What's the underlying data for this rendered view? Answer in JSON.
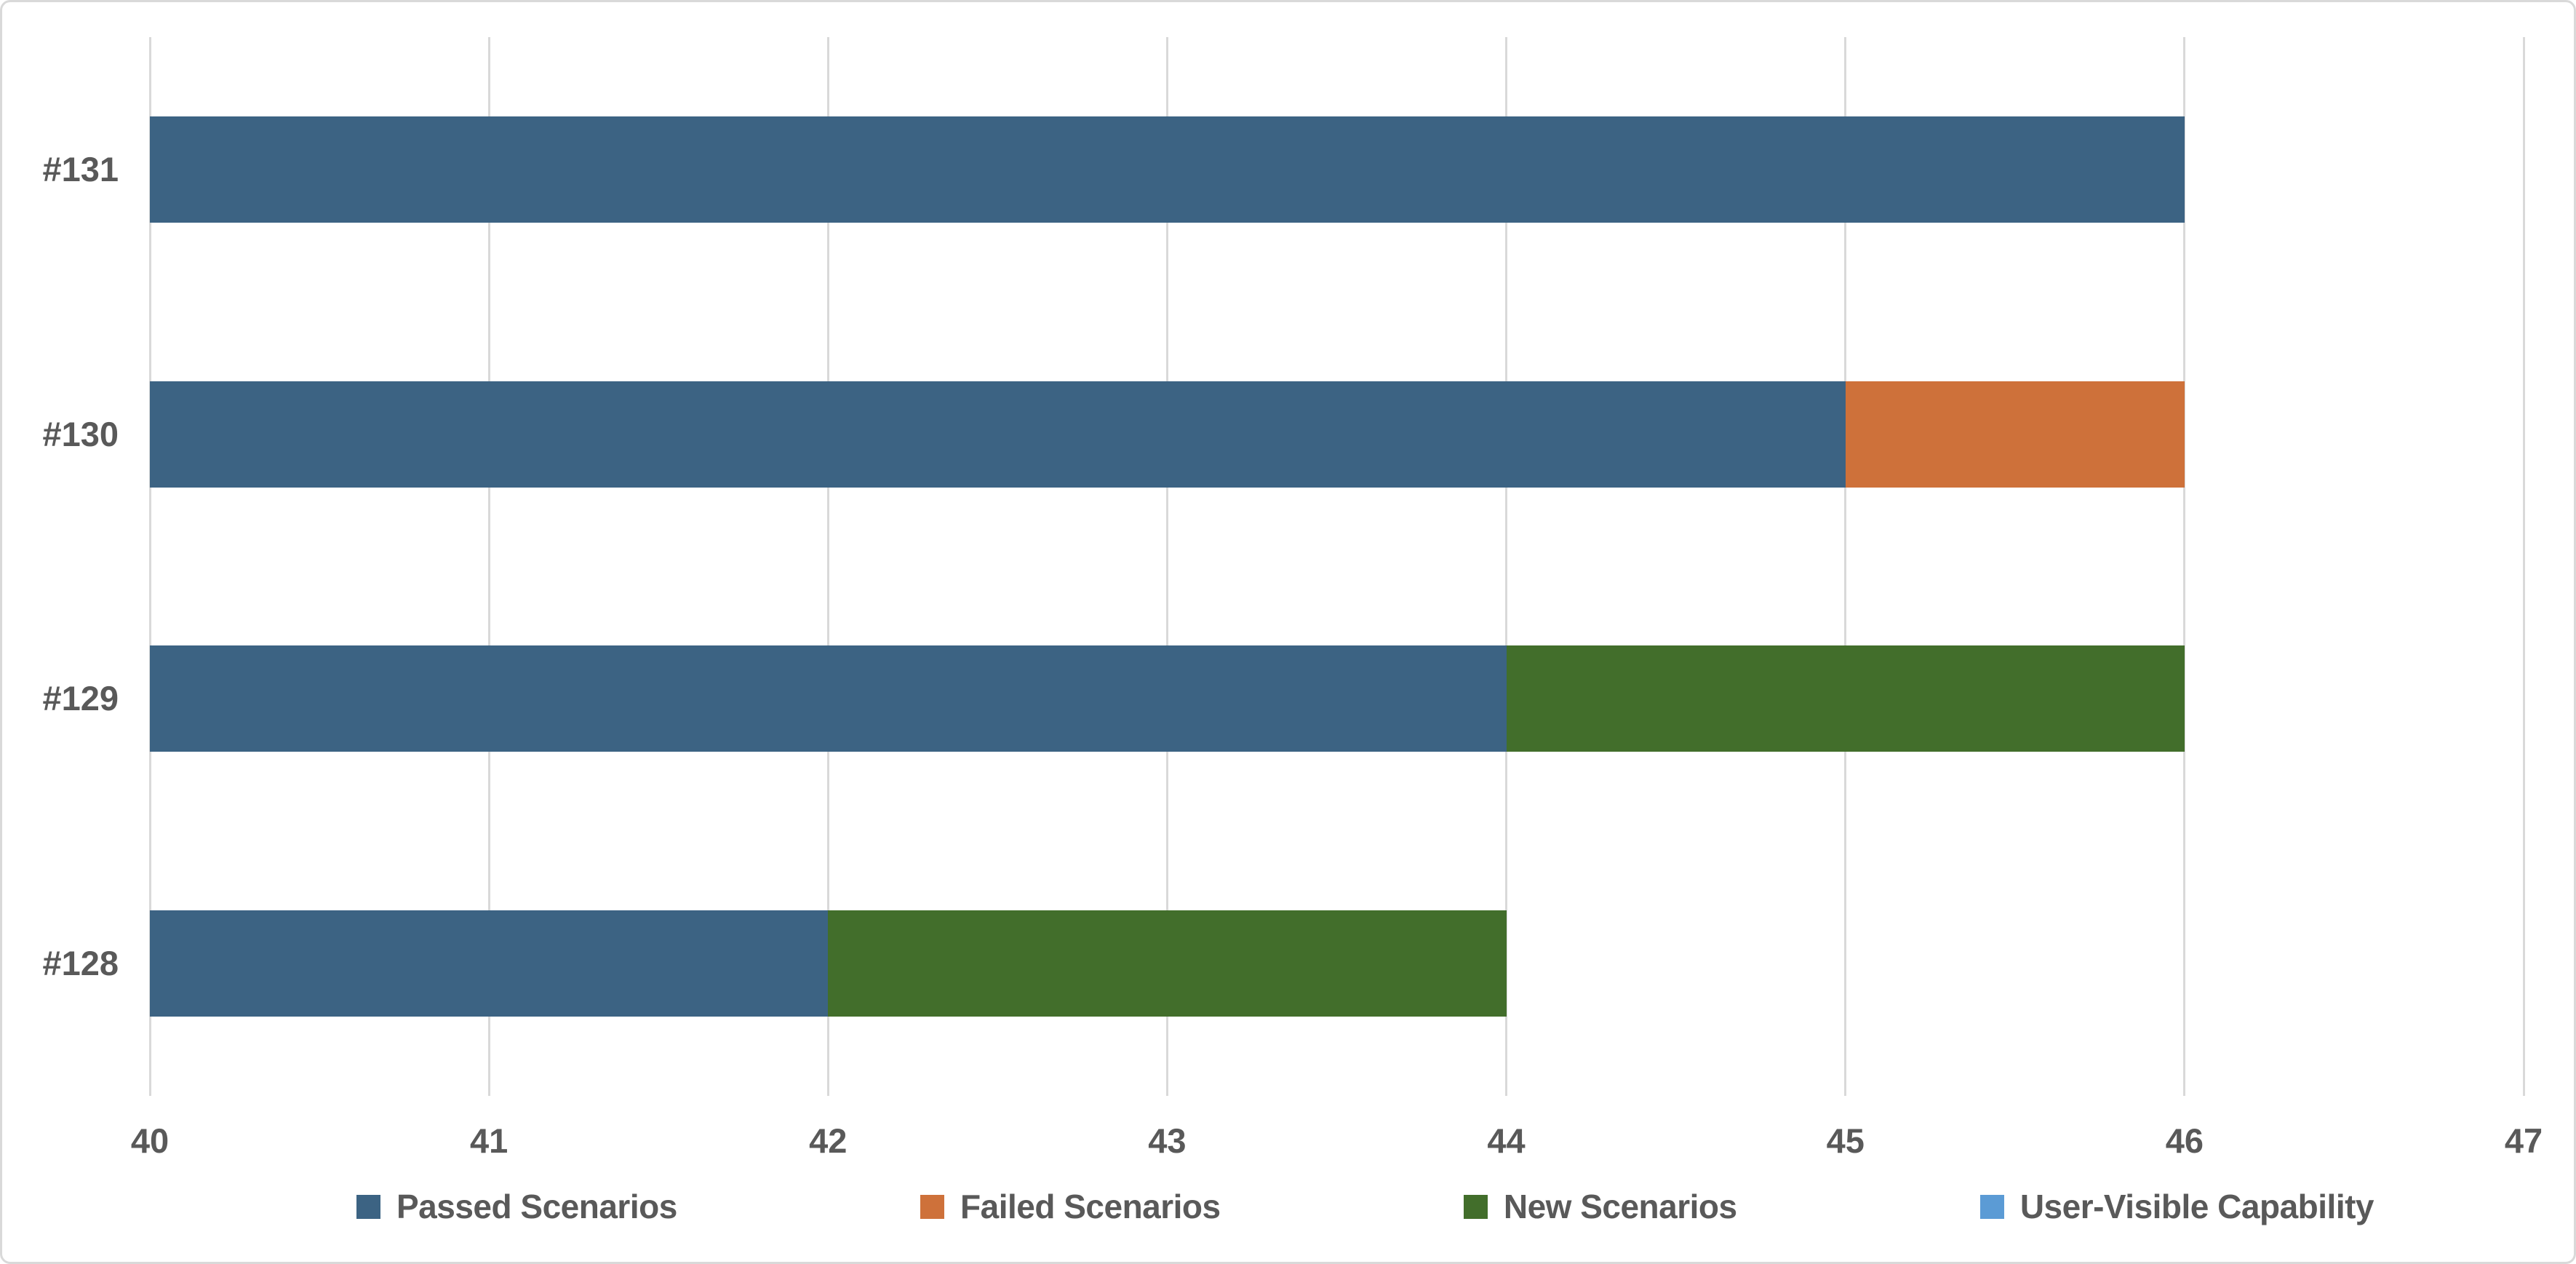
{
  "chart_data": {
    "type": "bar",
    "orientation": "horizontal-stacked",
    "title": "",
    "xlabel": "",
    "ylabel": "",
    "categories": [
      "#131",
      "#130",
      "#129",
      "#128"
    ],
    "series": [
      {
        "name": "Passed Scenarios",
        "color": "#3c6383",
        "values": [
          46,
          45,
          44,
          42
        ]
      },
      {
        "name": "Failed Scenarios",
        "color": "#ce713a",
        "values": [
          0,
          1,
          0,
          0
        ]
      },
      {
        "name": "New Scenarios",
        "color": "#426e2b",
        "values": [
          0,
          0,
          2,
          2
        ]
      },
      {
        "name": "User-Visible Capability",
        "color": "#5b9bd5",
        "values": [
          0,
          0,
          0,
          0
        ]
      }
    ],
    "xlim": [
      40,
      47
    ],
    "xticks": [
      "40",
      "41",
      "42",
      "43",
      "44",
      "45",
      "46",
      "47"
    ],
    "grid": true,
    "legend_position": "bottom",
    "colors": {
      "text": "#595959",
      "gridline": "#d9d9d9",
      "border": "#d9d9d9",
      "background": "#ffffff"
    }
  }
}
